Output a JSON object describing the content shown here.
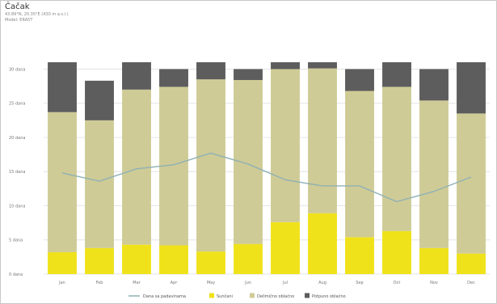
{
  "header": {
    "title": "Čačak",
    "subtitle_line1": "43.89°N, 20.35°E (430 m a.s.l.)",
    "subtitle_line2": "Model: ERA5T"
  },
  "chart_data": {
    "type": "bar",
    "stacked": true,
    "title": "Čačak",
    "categories": [
      "Jan",
      "Feb",
      "Mar",
      "Apr",
      "May",
      "Jun",
      "Jul",
      "Aug",
      "Sep",
      "Oct",
      "Nov",
      "Dec"
    ],
    "ylim": [
      0,
      31
    ],
    "yticks": [
      0,
      5,
      10,
      15,
      20,
      25,
      30
    ],
    "ytick_labels": [
      "0 dana",
      "5 dana",
      "10 dana",
      "15 dana",
      "20 dana",
      "25 dana",
      "30 dana"
    ],
    "grid": true,
    "legend_position": "bottom",
    "series": [
      {
        "name": "Sunčani",
        "color": "#f0e21a",
        "values": [
          3.2,
          3.8,
          4.3,
          4.2,
          3.3,
          4.4,
          7.6,
          8.9,
          5.4,
          6.3,
          3.8,
          3.0
        ]
      },
      {
        "name": "Delimično oblačno",
        "color": "#cfcb96",
        "values": [
          20.5,
          18.7,
          22.7,
          23.2,
          25.2,
          24.0,
          22.4,
          21.2,
          21.4,
          21.1,
          21.6,
          20.5
        ]
      },
      {
        "name": "Potpuno oblačno",
        "color": "#5d5d5d",
        "values": [
          7.3,
          5.8,
          4.0,
          2.6,
          2.5,
          1.6,
          1.0,
          0.9,
          3.2,
          3.6,
          4.6,
          7.5
        ]
      }
    ],
    "line": {
      "name": "Dana sa padavinama",
      "color": "#8fb1b4",
      "values": [
        14.8,
        13.6,
        15.4,
        16.0,
        17.7,
        16.1,
        13.8,
        12.9,
        12.9,
        10.6,
        12.1,
        14.2
      ]
    }
  }
}
